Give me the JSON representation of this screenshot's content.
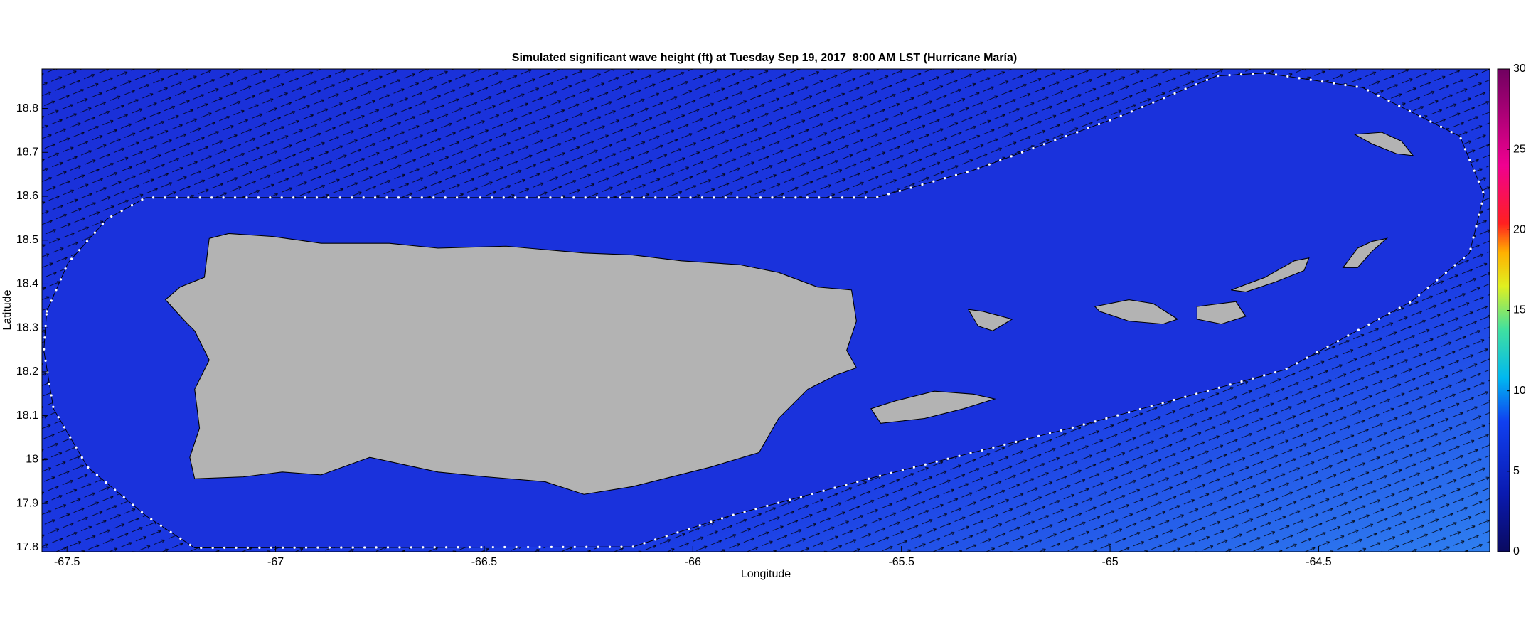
{
  "chart_data": {
    "type": "map",
    "title": "Simulated significant wave height (ft) at Tuesday Sep 19, 2017  8:00 AM LST (Hurricane María)",
    "x_label": "Longitude",
    "y_label": "Latitude",
    "xlim": [
      -67.56,
      -64.09
    ],
    "ylim": [
      17.79,
      18.89
    ],
    "xticks": [
      -67.5,
      -67,
      -66.5,
      -66,
      -65.5,
      -65,
      -64.5
    ],
    "yticks": [
      17.8,
      17.9,
      18,
      18.1,
      18.2,
      18.3,
      18.4,
      18.5,
      18.6,
      18.7,
      18.8
    ],
    "colorbar": {
      "lim": [
        0,
        30
      ],
      "ticks": [
        0,
        5,
        10,
        15,
        20,
        25,
        30
      ]
    }
  }
}
